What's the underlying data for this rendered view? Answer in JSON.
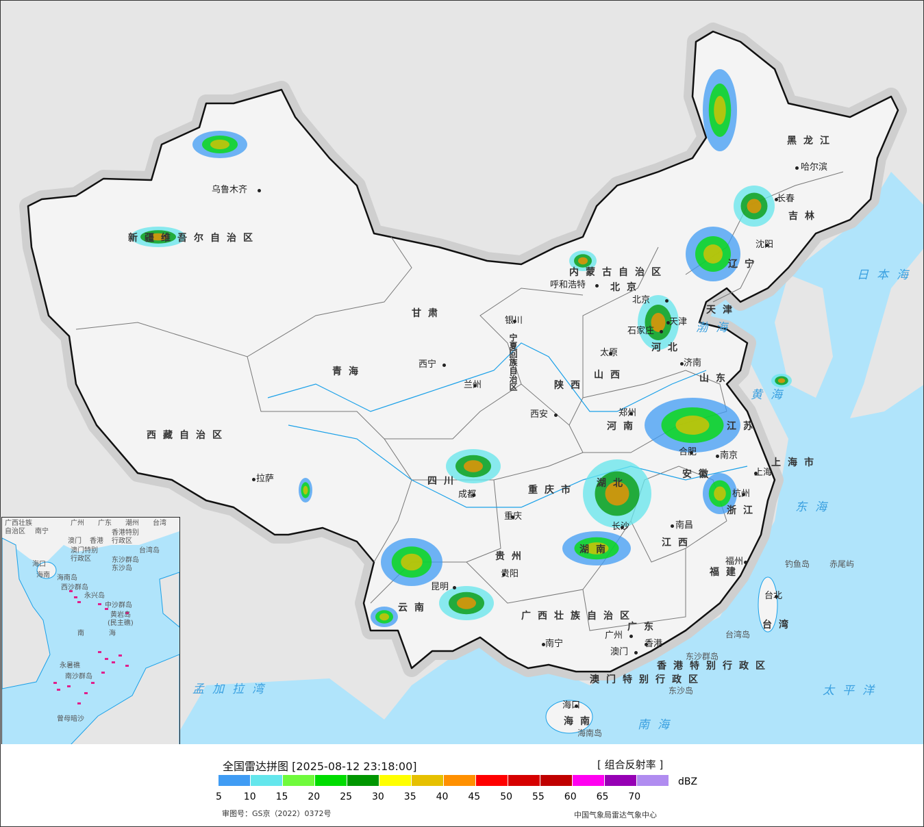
{
  "map": {
    "colors": {
      "ocean": "#b0e4fb",
      "land_foreign": "#e6e6e6",
      "land_china": "#f4f4f4",
      "border": "#111111",
      "rivers": "#1aa0e8"
    },
    "cities": [
      "乌鲁木齐",
      "拉萨",
      "西宁",
      "兰州",
      "银川",
      "呼和浩特",
      "北京",
      "天津",
      "石家庄",
      "太原",
      "济南",
      "郑州",
      "西安",
      "成都",
      "重庆",
      "贵阳",
      "昆明",
      "南宁",
      "广州",
      "澳门",
      "香港",
      "长沙",
      "南昌",
      "合肥",
      "南京",
      "上海",
      "杭州",
      "福州",
      "台北",
      "海口",
      "沈阳",
      "长春",
      "哈尔滨"
    ],
    "provinces": [
      "新疆维吾尔自治区",
      "西藏自治区",
      "青海",
      "甘肃",
      "内蒙古自治区",
      "宁夏回族自治区",
      "陕西",
      "山西",
      "河北",
      "河南",
      "山东",
      "四川",
      "重庆市",
      "云南",
      "贵州",
      "广西壮族自治区",
      "湖南",
      "湖北",
      "江西",
      "安徽",
      "江苏",
      "上海市",
      "浙江",
      "福建",
      "广东",
      "香港特别行政区",
      "澳门特别行政区",
      "台湾",
      "海南",
      "辽宁",
      "吉林",
      "黑龙江",
      "天津",
      "北京"
    ],
    "oceans": [
      "日本海",
      "黄海",
      "渤海",
      "东海",
      "太平洋",
      "南海",
      "孟加拉湾"
    ],
    "islands": [
      "钓鱼岛",
      "赤尾屿",
      "台湾岛",
      "东沙群岛",
      "东沙岛",
      "海南岛"
    ],
    "inset_labels": [
      "广西壮族",
      "自治区",
      "南宁",
      "广州",
      "广东",
      "澳门",
      "香港",
      "香港特别",
      "行政区",
      "澳门特别",
      "行政区",
      "潮州",
      "台湾",
      "台湾岛",
      "东沙群岛",
      "东沙岛",
      "海口",
      "海南",
      "海南岛",
      "西沙群岛",
      "永兴岛",
      "中沙群岛",
      "黄岩岛",
      "(民主礁)",
      "南",
      "海",
      "永暑礁",
      "南沙群岛",
      "曾母暗沙"
    ]
  },
  "legend": {
    "title": "全国雷达拼图 [2025-08-12 23:18:00]",
    "product": "[ 组合反射率 ]",
    "unit": "dBZ",
    "colors": [
      "#409cf4",
      "#64e6ec",
      "#70fa3c",
      "#00dc00",
      "#009600",
      "#ffff00",
      "#e6c000",
      "#ff9000",
      "#ff0000",
      "#d60000",
      "#c00000",
      "#ff00f0",
      "#9600b4",
      "#b08cf0"
    ],
    "ticks": [
      "5",
      "10",
      "15",
      "20",
      "25",
      "30",
      "35",
      "40",
      "45",
      "50",
      "55",
      "60",
      "65",
      "70"
    ],
    "approval": "审图号：GS京（2022）0372号",
    "organization": "中国气象局雷达气象中心"
  }
}
